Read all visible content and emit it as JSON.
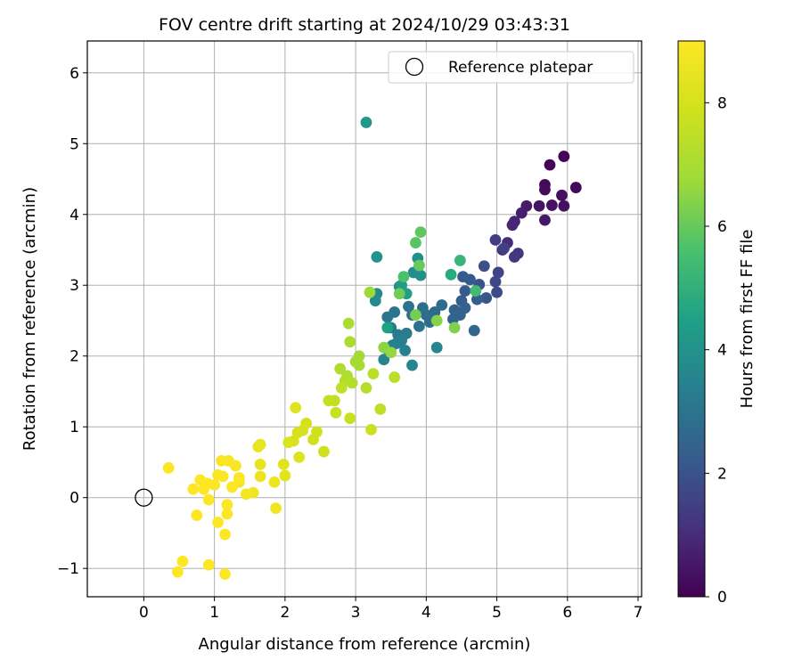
{
  "chart_data": {
    "type": "scatter",
    "title": "FOV centre drift starting at 2024/10/29 03:43:31",
    "xlabel": "Angular distance from reference (arcmin)",
    "ylabel": "Rotation from reference (arcmin)",
    "xlim": [
      -0.8,
      7.05
    ],
    "ylim": [
      -1.4,
      6.45
    ],
    "x_ticks": [
      0,
      1,
      2,
      3,
      4,
      5,
      6,
      7
    ],
    "y_ticks": [
      -1,
      0,
      1,
      2,
      3,
      4,
      5,
      6
    ],
    "x_tick_labels": [
      "0",
      "1",
      "2",
      "3",
      "4",
      "5",
      "6",
      "7"
    ],
    "y_tick_labels": [
      "−1",
      "0",
      "1",
      "2",
      "3",
      "4",
      "5",
      "6"
    ],
    "grid": true,
    "legend": {
      "position": "top-right",
      "label": "Reference platepar"
    },
    "reference_point": {
      "x": 0,
      "y": 0
    },
    "colorbar": {
      "label": "Hours from first FF file",
      "colormap": "viridis",
      "range": [
        0,
        9
      ],
      "ticks": [
        0,
        2,
        4,
        6,
        8
      ],
      "tick_labels": [
        "0",
        "2",
        "4",
        "6",
        "8"
      ]
    },
    "points": [
      [
        5.95,
        4.82,
        0.05
      ],
      [
        5.75,
        4.7,
        0.1
      ],
      [
        6.12,
        4.38,
        0.15
      ],
      [
        5.68,
        4.42,
        0.2
      ],
      [
        5.68,
        4.35,
        0.25
      ],
      [
        5.92,
        4.27,
        0.3
      ],
      [
        5.95,
        4.12,
        0.35
      ],
      [
        5.78,
        4.13,
        0.4
      ],
      [
        5.6,
        4.12,
        0.45
      ],
      [
        5.68,
        3.92,
        0.5
      ],
      [
        5.42,
        4.12,
        0.6
      ],
      [
        5.35,
        4.02,
        0.7
      ],
      [
        5.25,
        3.9,
        0.8
      ],
      [
        5.22,
        3.85,
        0.9
      ],
      [
        5.15,
        3.6,
        1.0
      ],
      [
        5.08,
        3.5,
        1.1
      ],
      [
        5.3,
        3.45,
        1.2
      ],
      [
        5.25,
        3.4,
        1.3
      ],
      [
        4.98,
        3.64,
        1.4
      ],
      [
        5.1,
        3.52,
        1.5
      ],
      [
        5.02,
        3.18,
        1.6
      ],
      [
        4.98,
        3.05,
        1.7
      ],
      [
        5.0,
        2.9,
        1.8
      ],
      [
        4.82,
        3.27,
        1.9
      ],
      [
        4.75,
        3.01,
        2.0
      ],
      [
        4.85,
        2.82,
        2.1
      ],
      [
        4.62,
        3.08,
        2.15
      ],
      [
        4.55,
        2.92,
        2.2
      ],
      [
        4.52,
        3.12,
        2.25
      ],
      [
        4.72,
        2.8,
        2.3
      ],
      [
        4.5,
        2.78,
        2.35
      ],
      [
        4.55,
        2.68,
        2.4
      ],
      [
        4.4,
        2.65,
        2.45
      ],
      [
        4.48,
        2.58,
        2.5
      ],
      [
        4.38,
        2.52,
        2.55
      ],
      [
        4.68,
        2.36,
        2.6
      ],
      [
        4.12,
        2.62,
        2.65
      ],
      [
        4.22,
        2.72,
        2.7
      ],
      [
        4.0,
        2.58,
        2.75
      ],
      [
        4.05,
        2.48,
        2.8
      ],
      [
        3.95,
        2.68,
        2.85
      ],
      [
        3.8,
        2.58,
        2.9
      ],
      [
        3.9,
        2.42,
        2.95
      ],
      [
        3.75,
        2.7,
        3.0
      ],
      [
        3.55,
        2.62,
        3.05
      ],
      [
        3.45,
        2.55,
        3.1
      ],
      [
        3.5,
        2.4,
        3.15
      ],
      [
        3.6,
        2.3,
        3.2
      ],
      [
        3.72,
        2.32,
        3.25
      ],
      [
        3.65,
        2.22,
        3.3
      ],
      [
        3.58,
        2.18,
        3.35
      ],
      [
        3.7,
        2.08,
        3.4
      ],
      [
        3.52,
        2.15,
        3.45
      ],
      [
        3.45,
        2.1,
        3.5
      ],
      [
        3.4,
        1.95,
        3.55
      ],
      [
        3.8,
        1.87,
        3.6
      ],
      [
        4.15,
        2.12,
        3.65
      ],
      [
        3.3,
        2.88,
        3.7
      ],
      [
        3.28,
        2.78,
        3.75
      ],
      [
        3.62,
        2.98,
        3.8
      ],
      [
        3.82,
        3.18,
        3.85
      ],
      [
        3.88,
        3.38,
        3.9
      ],
      [
        3.92,
        3.14,
        3.95
      ],
      [
        3.3,
        3.4,
        4.0
      ],
      [
        3.15,
        5.3,
        4.2
      ],
      [
        3.65,
        3.0,
        4.3
      ],
      [
        3.72,
        2.88,
        4.4
      ],
      [
        3.45,
        2.4,
        4.5
      ],
      [
        4.35,
        3.15,
        4.8
      ],
      [
        4.48,
        3.35,
        5.2
      ],
      [
        4.7,
        2.92,
        5.4
      ],
      [
        3.68,
        3.12,
        5.6
      ],
      [
        3.85,
        3.6,
        5.8
      ],
      [
        3.92,
        3.75,
        5.9
      ],
      [
        3.9,
        3.28,
        6.0
      ],
      [
        3.62,
        2.88,
        6.1
      ],
      [
        3.85,
        2.58,
        6.2
      ],
      [
        4.4,
        2.4,
        6.3
      ],
      [
        4.15,
        2.5,
        6.4
      ],
      [
        3.4,
        2.12,
        6.5
      ],
      [
        3.5,
        2.05,
        6.6
      ],
      [
        3.2,
        2.9,
        6.7
      ],
      [
        3.05,
        2.0,
        6.8
      ],
      [
        3.0,
        1.92,
        6.85
      ],
      [
        3.05,
        1.87,
        6.9
      ],
      [
        2.9,
        2.46,
        7.0
      ],
      [
        2.92,
        2.2,
        7.05
      ],
      [
        2.88,
        1.72,
        7.1
      ],
      [
        2.78,
        1.82,
        7.15
      ],
      [
        2.85,
        1.65,
        7.2
      ],
      [
        2.95,
        1.62,
        7.25
      ],
      [
        3.15,
        1.55,
        7.3
      ],
      [
        3.25,
        1.75,
        7.35
      ],
      [
        3.55,
        1.7,
        7.4
      ],
      [
        3.35,
        1.25,
        7.45
      ],
      [
        2.8,
        1.55,
        7.5
      ],
      [
        2.7,
        1.37,
        7.55
      ],
      [
        2.62,
        1.37,
        7.6
      ],
      [
        2.72,
        1.2,
        7.65
      ],
      [
        2.92,
        1.12,
        7.7
      ],
      [
        3.22,
        0.96,
        7.75
      ],
      [
        2.55,
        0.65,
        7.8
      ],
      [
        2.45,
        0.93,
        7.85
      ],
      [
        2.4,
        0.82,
        7.9
      ],
      [
        2.3,
        1.05,
        7.95
      ],
      [
        2.25,
        0.95,
        8.0
      ],
      [
        2.18,
        0.92,
        8.05
      ],
      [
        2.12,
        0.8,
        8.1
      ],
      [
        2.05,
        0.78,
        8.15
      ],
      [
        2.2,
        0.57,
        8.2
      ],
      [
        2.15,
        1.27,
        8.25
      ],
      [
        1.98,
        0.47,
        8.3
      ],
      [
        2.0,
        0.31,
        8.35
      ],
      [
        1.65,
        0.75,
        8.4
      ],
      [
        1.62,
        0.72,
        8.45
      ],
      [
        1.65,
        0.47,
        8.5
      ],
      [
        1.65,
        0.3,
        8.55
      ],
      [
        1.85,
        0.22,
        8.6
      ],
      [
        1.87,
        -0.15,
        8.65
      ],
      [
        1.55,
        0.07,
        8.7
      ],
      [
        1.45,
        0.05,
        8.75
      ],
      [
        1.35,
        0.22,
        8.8
      ],
      [
        1.3,
        0.45,
        8.82
      ],
      [
        1.2,
        0.52,
        8.85
      ],
      [
        1.1,
        0.52,
        8.88
      ],
      [
        1.05,
        0.32,
        8.9
      ],
      [
        1.12,
        0.3,
        8.92
      ],
      [
        1.0,
        0.18,
        8.95
      ],
      [
        0.9,
        0.2,
        8.97
      ],
      [
        0.8,
        0.25,
        9.0
      ],
      [
        0.85,
        0.12,
        9.0
      ],
      [
        0.92,
        -0.03,
        9.0
      ],
      [
        0.7,
        0.12,
        9.0
      ],
      [
        0.35,
        0.42,
        9.0
      ],
      [
        0.75,
        -0.25,
        9.0
      ],
      [
        1.05,
        -0.35,
        9.0
      ],
      [
        1.18,
        -0.1,
        9.0
      ],
      [
        1.18,
        -0.23,
        9.0
      ],
      [
        1.15,
        -0.52,
        9.0
      ],
      [
        0.55,
        -0.9,
        9.0
      ],
      [
        0.48,
        -1.05,
        9.0
      ],
      [
        0.92,
        -0.95,
        9.0
      ],
      [
        1.15,
        -1.08,
        9.0
      ],
      [
        1.25,
        0.15,
        9.0
      ],
      [
        1.35,
        0.28,
        9.0
      ]
    ]
  }
}
